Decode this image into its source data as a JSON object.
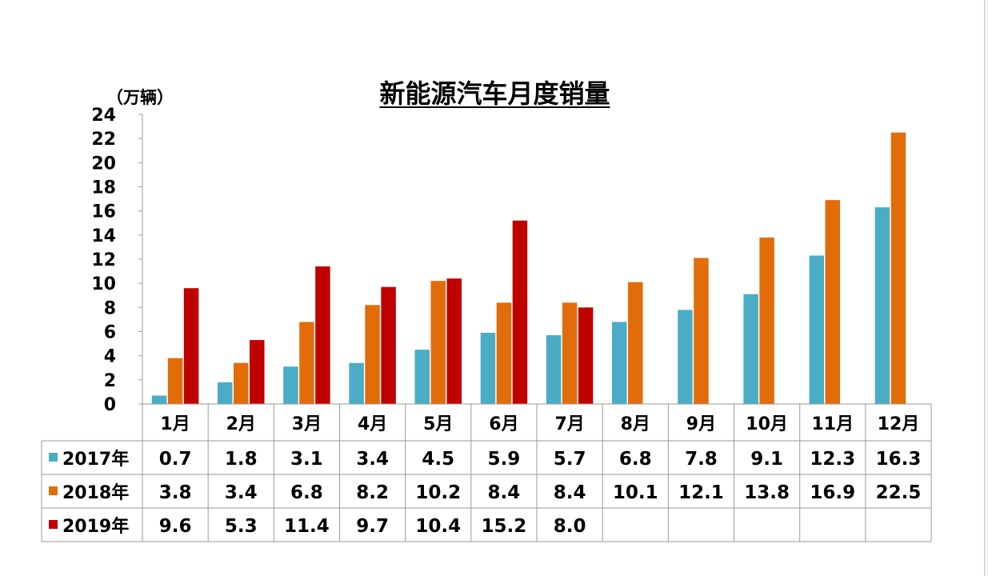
{
  "title": "新能源汽车月度销量",
  "unit_label": "（万辆）",
  "chart_data": {
    "type": "bar",
    "title": "新能源汽车月度销量",
    "ylabel": "（万辆）",
    "xlabel": "",
    "ylim": [
      0,
      24
    ],
    "yticks": [
      0,
      2,
      4,
      6,
      8,
      10,
      12,
      14,
      16,
      18,
      20,
      22,
      24
    ],
    "grid": false,
    "legend": "table-left",
    "categories": [
      "1月",
      "2月",
      "3月",
      "4月",
      "5月",
      "6月",
      "7月",
      "8月",
      "9月",
      "10月",
      "11月",
      "12月"
    ],
    "series": [
      {
        "name": "2017年",
        "color": "#4bacc6",
        "values": [
          0.7,
          1.8,
          3.1,
          3.4,
          4.5,
          5.9,
          5.7,
          6.8,
          7.8,
          9.1,
          12.3,
          16.3
        ],
        "labels": [
          "0.7",
          "1.8",
          "3.1",
          "3.4",
          "4.5",
          "5.9",
          "5.7",
          "6.8",
          "7.8",
          "9.1",
          "12.3",
          "16.3"
        ]
      },
      {
        "name": "2018年",
        "color": "#e36c0a",
        "values": [
          3.8,
          3.4,
          6.8,
          8.2,
          10.2,
          8.4,
          8.4,
          10.1,
          12.1,
          13.8,
          16.9,
          22.5
        ],
        "labels": [
          "3.8",
          "3.4",
          "6.8",
          "8.2",
          "10.2",
          "8.4",
          "8.4",
          "10.1",
          "12.1",
          "13.8",
          "16.9",
          "22.5"
        ]
      },
      {
        "name": "2019年",
        "color": "#c00000",
        "values": [
          9.6,
          5.3,
          11.4,
          9.7,
          10.4,
          15.2,
          8.0,
          null,
          null,
          null,
          null,
          null
        ],
        "labels": [
          "9.6",
          "5.3",
          "11.4",
          "9.7",
          "10.4",
          "15.2",
          "8.0",
          "",
          "",
          "",
          "",
          ""
        ]
      }
    ]
  }
}
